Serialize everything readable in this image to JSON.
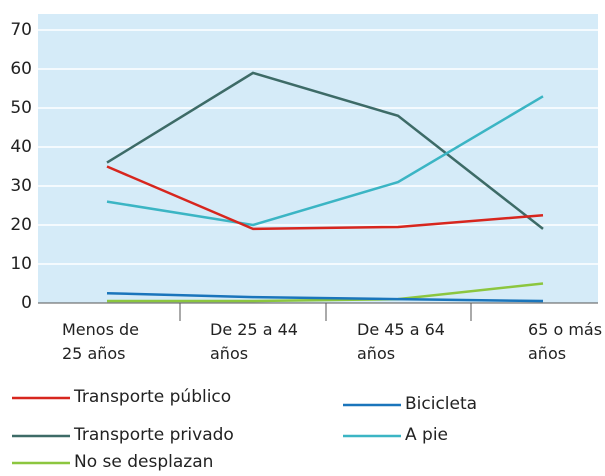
{
  "chart_data": {
    "type": "line",
    "categories": [
      "Menos de\n25 años",
      "De 25 a 44\naños",
      "De 45 a 64\naños",
      "65 o más\naños"
    ],
    "series": [
      {
        "name": "Transporte público",
        "color": "#d7261e",
        "values": [
          35,
          19,
          19.5,
          22.5
        ]
      },
      {
        "name": "Transporte privado",
        "color": "#3d6b67",
        "values": [
          36,
          59,
          48,
          19
        ]
      },
      {
        "name": "No se desplazan",
        "color": "#8cc63f",
        "values": [
          0.5,
          0.5,
          1,
          5
        ]
      },
      {
        "name": "Bicicleta",
        "color": "#1a75bb",
        "values": [
          2.5,
          1.5,
          1,
          0.5
        ]
      },
      {
        "name": "A pie",
        "color": "#3bb5c4",
        "values": [
          26,
          20,
          31,
          53
        ]
      }
    ],
    "ylim": [
      0,
      70
    ],
    "yticks": [
      0,
      10,
      20,
      30,
      40,
      50,
      60,
      70
    ],
    "grid": true
  }
}
